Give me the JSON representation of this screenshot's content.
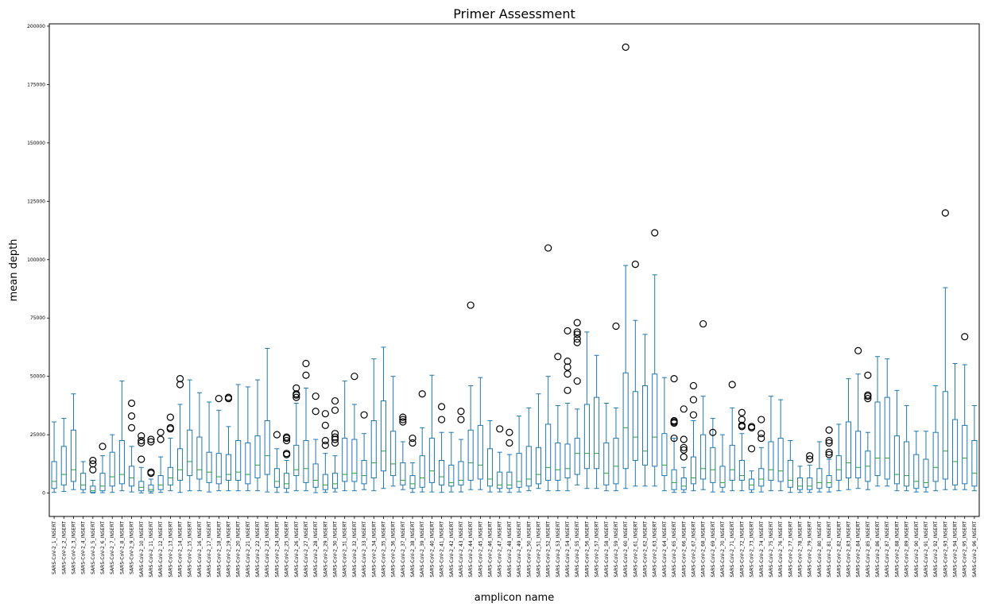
{
  "chart_data": {
    "type": "box",
    "title": "Primer Assessment",
    "xlabel": "amplicon name",
    "ylabel": "mean depth",
    "ylim": [
      -10000,
      201000
    ],
    "yticks": [
      0,
      25000,
      50000,
      75000,
      100000,
      125000,
      150000,
      175000,
      200000
    ],
    "grid": false,
    "colors": {
      "box": "#1f77b4",
      "median": "#2ca02c",
      "flier": "#000000"
    },
    "categories": [
      "SARS-CoV-2_1_INSERT",
      "SARS-CoV-2_2_INSERT",
      "SARS-CoV-2_3_INSERT",
      "SARS-CoV-2_4_INSERT",
      "SARS-CoV-2_5_INSERT",
      "SARS-CoV-2_6_INSERT",
      "SARS-CoV-2_7_INSERT",
      "SARS-CoV-2_8_INSERT",
      "SARS-CoV-2_9_INSERT",
      "SARS-CoV-2_10_INSERT",
      "SARS-CoV-2_11_INSERT",
      "SARS-CoV-2_12_INSERT",
      "SARS-CoV-2_13_INSERT",
      "SARS-CoV-2_14_INSERT",
      "SARS-CoV-2_15_INSERT",
      "SARS-CoV-2_16_INSERT",
      "SARS-CoV-2_17_INSERT",
      "SARS-CoV-2_18_INSERT",
      "SARS-CoV-2_19_INSERT",
      "SARS-CoV-2_20_INSERT",
      "SARS-CoV-2_21_INSERT",
      "SARS-CoV-2_22_INSERT",
      "SARS-CoV-2_23_INSERT",
      "SARS-CoV-2_24_INSERT",
      "SARS-CoV-2_25_INSERT",
      "SARS-CoV-2_26_INSERT",
      "SARS-CoV-2_27_INSERT",
      "SARS-CoV-2_28_INSERT",
      "SARS-CoV-2_29_INSERT",
      "SARS-CoV-2_30_INSERT",
      "SARS-CoV-2_31_INSERT",
      "SARS-CoV-2_32_INSERT",
      "SARS-CoV-2_33_INSERT",
      "SARS-CoV-2_34_INSERT",
      "SARS-CoV-2_35_INSERT",
      "SARS-CoV-2_36_INSERT",
      "SARS-CoV-2_37_INSERT",
      "SARS-CoV-2_38_INSERT",
      "SARS-CoV-2_39_INSERT",
      "SARS-CoV-2_40_INSERT",
      "SARS-CoV-2_41_INSERT",
      "SARS-CoV-2_42_INSERT",
      "SARS-CoV-2_43_INSERT",
      "SARS-CoV-2_44_INSERT",
      "SARS-CoV-2_45_INSERT",
      "SARS-CoV-2_46_INSERT",
      "SARS-CoV-2_47_INSERT",
      "SARS-CoV-2_48_INSERT",
      "SARS-CoV-2_49_INSERT",
      "SARS-CoV-2_50_INSERT",
      "SARS-CoV-2_51_INSERT",
      "SARS-CoV-2_52_INSERT",
      "SARS-CoV-2_53_INSERT",
      "SARS-CoV-2_54_INSERT",
      "SARS-CoV-2_55_INSERT",
      "SARS-CoV-2_56_INSERT",
      "SARS-CoV-2_57_INSERT",
      "SARS-CoV-2_58_INSERT",
      "SARS-CoV-2_59_INSERT",
      "SARS-CoV-2_60_INSERT",
      "SARS-CoV-2_61_INSERT",
      "SARS-CoV-2_62_INSERT",
      "SARS-CoV-2_63_INSERT",
      "SARS-CoV-2_64_INSERT",
      "SARS-CoV-2_65_INSERT",
      "SARS-CoV-2_66_INSERT",
      "SARS-CoV-2_67_INSERT",
      "SARS-CoV-2_68_INSERT",
      "SARS-CoV-2_69_INSERT",
      "SARS-CoV-2_70_INSERT",
      "SARS-CoV-2_71_INSERT",
      "SARS-CoV-2_72_INSERT",
      "SARS-CoV-2_73_INSERT",
      "SARS-CoV-2_74_INSERT",
      "SARS-CoV-2_75_INSERT",
      "SARS-CoV-2_76_INSERT",
      "SARS-CoV-2_77_INSERT",
      "SARS-CoV-2_78_INSERT",
      "SARS-CoV-2_79_INSERT",
      "SARS-CoV-2_80_INSERT",
      "SARS-CoV-2_81_INSERT",
      "SARS-CoV-2_82_INSERT",
      "SARS-CoV-2_83_INSERT",
      "SARS-CoV-2_84_INSERT",
      "SARS-CoV-2_85_INSERT",
      "SARS-CoV-2_86_INSERT",
      "SARS-CoV-2_87_INSERT",
      "SARS-CoV-2_88_INSERT",
      "SARS-CoV-2_89_INSERT",
      "SARS-CoV-2_90_INSERT",
      "SARS-CoV-2_91_INSERT",
      "SARS-CoV-2_92_INSERT",
      "SARS-CoV-2_93_INSERT",
      "SARS-CoV-2_94_INSERT",
      "SARS-CoV-2_95_INSERT",
      "SARS-CoV-2_96_INSERT"
    ],
    "boxes": [
      [
        300,
        2000,
        5000,
        13500,
        30500,
        []
      ],
      [
        700,
        3500,
        8000,
        20000,
        32000,
        []
      ],
      [
        1500,
        5000,
        10000,
        27000,
        42500,
        []
      ],
      [
        200,
        1500,
        3500,
        8500,
        13500,
        []
      ],
      [
        50,
        300,
        1000,
        3000,
        5500,
        [
          14000,
          12500,
          10000
        ]
      ],
      [
        200,
        1000,
        3000,
        8500,
        16000,
        [
          20000
        ]
      ],
      [
        300,
        3000,
        7000,
        17500,
        25000,
        []
      ],
      [
        1000,
        4000,
        8000,
        22500,
        48000,
        []
      ],
      [
        500,
        3000,
        6500,
        11500,
        20000,
        [
          38500,
          33000,
          28000
        ]
      ],
      [
        100,
        1000,
        2500,
        5000,
        11000,
        [
          24500,
          22500,
          21500,
          14500
        ]
      ],
      [
        50,
        800,
        1500,
        3500,
        6000,
        [
          23000,
          22000,
          9000,
          8500
        ]
      ],
      [
        300,
        1500,
        3500,
        7500,
        15500,
        [
          26000,
          23000
        ]
      ],
      [
        1000,
        3500,
        6500,
        11000,
        23500,
        [
          32500,
          28000,
          27500
        ]
      ],
      [
        300,
        5500,
        10000,
        19000,
        38000,
        [
          49000,
          46500
        ]
      ],
      [
        1000,
        7500,
        13500,
        27000,
        48500,
        []
      ],
      [
        1000,
        6000,
        10000,
        24000,
        43000,
        []
      ],
      [
        500,
        4500,
        9000,
        17500,
        39000,
        []
      ],
      [
        1000,
        4000,
        7000,
        17000,
        35500,
        [
          40500
        ]
      ],
      [
        1000,
        5500,
        8000,
        16500,
        28500,
        [
          41000,
          40500
        ]
      ],
      [
        1000,
        5500,
        9000,
        22500,
        46500,
        []
      ],
      [
        1000,
        4000,
        8000,
        21500,
        45500,
        []
      ],
      [
        1000,
        6500,
        12000,
        24500,
        48500,
        []
      ],
      [
        500,
        8000,
        16000,
        31000,
        62000,
        []
      ],
      [
        300,
        2500,
        5000,
        10500,
        19000,
        [
          25000
        ]
      ],
      [
        300,
        2000,
        4000,
        8500,
        14000,
        [
          24000,
          23500,
          22500,
          17000,
          16500
        ]
      ],
      [
        1000,
        7500,
        10000,
        20500,
        38500,
        [
          45000,
          42500,
          42000,
          41000
        ]
      ],
      [
        1000,
        4500,
        10500,
        22500,
        45000,
        [
          55500,
          50500
        ]
      ],
      [
        200,
        2500,
        5500,
        12500,
        23000,
        [
          41500,
          35000
        ]
      ],
      [
        300,
        1500,
        3500,
        8000,
        17000,
        [
          34000,
          29000,
          22500,
          20500
        ]
      ],
      [
        500,
        2000,
        4000,
        8500,
        16000,
        [
          39500,
          35500,
          25500,
          24000,
          23000,
          21500
        ]
      ],
      [
        1000,
        5000,
        8000,
        23500,
        48000,
        []
      ],
      [
        1000,
        5000,
        8500,
        23000,
        38000,
        [
          50000
        ]
      ],
      [
        1500,
        4000,
        7500,
        14000,
        25500,
        [
          33500
        ]
      ],
      [
        1000,
        6500,
        13000,
        31000,
        57500,
        []
      ],
      [
        2000,
        9500,
        18000,
        39500,
        62500,
        []
      ],
      [
        3000,
        7500,
        12500,
        26500,
        50000,
        []
      ],
      [
        1500,
        3500,
        5500,
        13000,
        22000,
        [
          32500,
          31500,
          30500
        ]
      ],
      [
        300,
        2000,
        4000,
        7500,
        13000,
        [
          23500,
          21500
        ]
      ],
      [
        500,
        2500,
        6500,
        16000,
        28000,
        [
          42500
        ]
      ],
      [
        500,
        4500,
        9500,
        23500,
        50500,
        []
      ],
      [
        300,
        3500,
        7000,
        14000,
        26000,
        [
          37000,
          31500
        ]
      ],
      [
        500,
        3000,
        4500,
        12000,
        26000,
        []
      ],
      [
        500,
        3500,
        5500,
        13500,
        23000,
        [
          35000,
          31500
        ]
      ],
      [
        1500,
        5500,
        13000,
        27000,
        46000,
        [
          80500
        ]
      ],
      [
        1500,
        6000,
        12000,
        29000,
        49500,
        []
      ],
      [
        500,
        3000,
        6000,
        19000,
        31000,
        []
      ],
      [
        500,
        2000,
        3500,
        9000,
        17500,
        [
          27500
        ]
      ],
      [
        300,
        2000,
        3500,
        9000,
        16500,
        [
          26000,
          21500
        ]
      ],
      [
        500,
        2500,
        5000,
        17000,
        33000,
        []
      ],
      [
        1000,
        3000,
        6000,
        20000,
        36500,
        []
      ],
      [
        2000,
        4000,
        8000,
        19500,
        42500,
        []
      ],
      [
        1000,
        5500,
        11000,
        29500,
        50000,
        [
          105000
        ]
      ],
      [
        1000,
        5500,
        10000,
        21500,
        37500,
        [
          58500
        ]
      ],
      [
        1000,
        6500,
        10500,
        21000,
        38500,
        [
          69500,
          56500,
          54000,
          51000,
          44000
        ]
      ],
      [
        3500,
        8000,
        17000,
        23500,
        36000,
        [
          73000,
          69000,
          68000,
          66000,
          64500,
          48000
        ]
      ],
      [
        2000,
        10500,
        17000,
        38000,
        69000,
        []
      ],
      [
        2000,
        10500,
        17000,
        41000,
        59000,
        []
      ],
      [
        1000,
        3500,
        8500,
        21500,
        38500,
        []
      ],
      [
        1000,
        4000,
        11500,
        23500,
        36500,
        [
          71500
        ]
      ],
      [
        2000,
        10500,
        28000,
        51500,
        97500,
        [
          191000
        ]
      ],
      [
        3000,
        14000,
        24000,
        43500,
        74000,
        [
          98000
        ]
      ],
      [
        3000,
        12000,
        18000,
        46000,
        68000,
        []
      ],
      [
        3000,
        11500,
        24000,
        51000,
        93500,
        [
          111500
        ]
      ],
      [
        1000,
        7500,
        12000,
        25500,
        49500,
        []
      ],
      [
        300,
        1500,
        4500,
        10000,
        23500,
        [
          49000,
          31000,
          30500,
          30000,
          23500
        ]
      ],
      [
        300,
        1500,
        3000,
        6500,
        11000,
        [
          36000,
          23000,
          19500,
          18500,
          15500
        ]
      ],
      [
        1000,
        4000,
        6500,
        15500,
        31000,
        [
          46000,
          40000,
          33500
        ]
      ],
      [
        1500,
        6000,
        10500,
        25000,
        41500,
        [
          72500
        ]
      ],
      [
        500,
        4500,
        10000,
        19500,
        32000,
        [
          26000
        ]
      ],
      [
        500,
        2500,
        4500,
        11500,
        25000,
        []
      ],
      [
        1000,
        5500,
        10000,
        20500,
        36500,
        [
          46500
        ]
      ],
      [
        1000,
        5500,
        7500,
        14000,
        25500,
        [
          34500,
          31500,
          29000,
          28500
        ]
      ],
      [
        300,
        1500,
        3500,
        6000,
        9500,
        [
          28500,
          28000,
          19000
        ]
      ],
      [
        500,
        3000,
        6000,
        10500,
        19500,
        [
          31500,
          25500,
          23500
        ]
      ],
      [
        1000,
        5500,
        10000,
        22000,
        41500,
        []
      ],
      [
        1000,
        5000,
        9500,
        23500,
        40000,
        []
      ],
      [
        300,
        2500,
        5500,
        14000,
        22500,
        []
      ],
      [
        300,
        1500,
        3000,
        6500,
        11500,
        []
      ],
      [
        300,
        1500,
        3000,
        6500,
        12000,
        [
          16000,
          14500
        ]
      ],
      [
        500,
        2000,
        4500,
        10500,
        22000,
        []
      ],
      [
        500,
        2500,
        4500,
        7500,
        14500,
        [
          27000,
          22500,
          21500,
          17500,
          16500
        ]
      ],
      [
        1000,
        5500,
        10000,
        16000,
        29500,
        []
      ],
      [
        1500,
        6500,
        13000,
        30500,
        49000,
        []
      ],
      [
        2000,
        6500,
        11000,
        26500,
        51000,
        [
          61000
        ]
      ],
      [
        1500,
        5000,
        11500,
        18000,
        26000,
        [
          50500,
          42000,
          41500,
          40500
        ]
      ],
      [
        3000,
        7500,
        15000,
        39000,
        58500,
        []
      ],
      [
        3000,
        6000,
        15000,
        41000,
        57500,
        []
      ],
      [
        1000,
        4000,
        8000,
        24500,
        44000,
        []
      ],
      [
        1000,
        3000,
        7500,
        22000,
        37500,
        []
      ],
      [
        500,
        2000,
        5000,
        16500,
        26500,
        []
      ],
      [
        500,
        2500,
        4500,
        14500,
        26500,
        []
      ],
      [
        1000,
        5000,
        11000,
        26000,
        46000,
        []
      ],
      [
        1500,
        6000,
        18000,
        43500,
        88000,
        [
          120000
        ]
      ],
      [
        1500,
        3500,
        13500,
        31500,
        55500,
        []
      ],
      [
        1500,
        4000,
        15000,
        29000,
        55000,
        [
          67000
        ]
      ],
      [
        1000,
        3000,
        8500,
        22500,
        37500,
        []
      ]
    ]
  }
}
